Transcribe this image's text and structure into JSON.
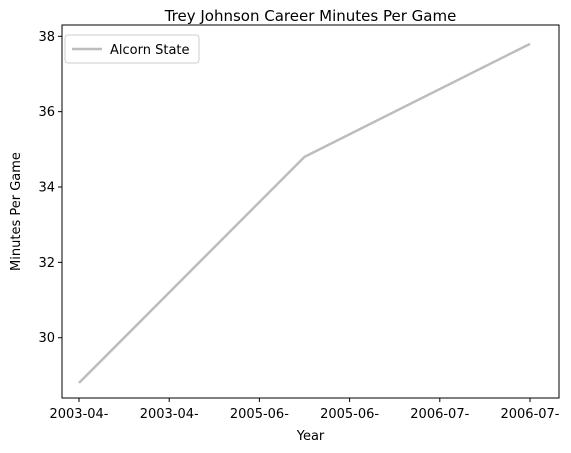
{
  "chart_data": {
    "type": "line",
    "title": "Trey Johnson Career Minutes Per Game",
    "xlabel": "Year",
    "ylabel": "Minutes Per Game",
    "x_ticks": [
      "2003-04-",
      "2003-04-",
      "2005-06-",
      "2005-06-",
      "2006-07-",
      "2006-07-"
    ],
    "x_points": [
      0,
      1,
      2
    ],
    "ylim": [
      28.4,
      38.3
    ],
    "y_ticks": [
      30,
      32,
      34,
      36,
      38
    ],
    "series": [
      {
        "name": "Alcorn State",
        "color": "#bdbdbd",
        "y": [
          28.8,
          34.8,
          37.8
        ]
      }
    ],
    "legend": "top-left",
    "grid": false
  }
}
